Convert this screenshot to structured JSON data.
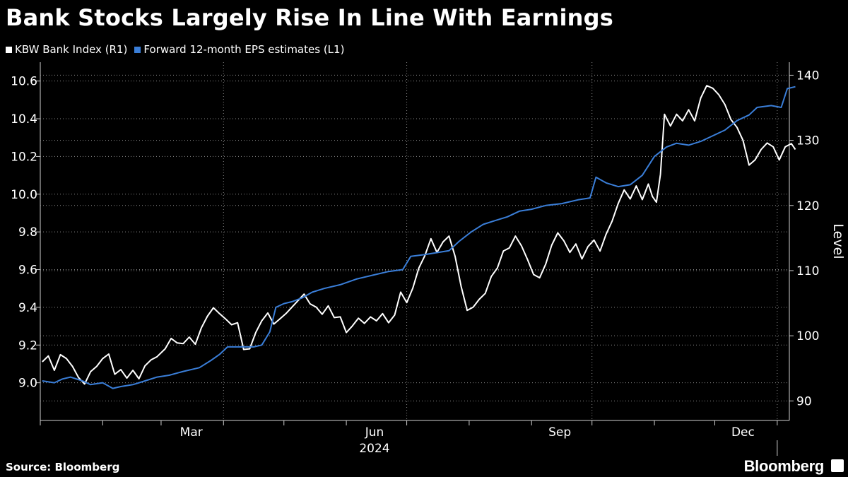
{
  "title": "Bank Stocks Largely Rise In Line With Earnings",
  "source": "Source: Bloomberg",
  "brand": "Bloomberg",
  "colors": {
    "background": "#000000",
    "index_line": "#ffffff",
    "eps_line": "#3a7ed8",
    "grid": "#8a8a8a"
  },
  "legend": [
    {
      "label": "KBW Bank Index (R1)",
      "color": "#ffffff"
    },
    {
      "label": "Forward 12-month EPS estimates (L1)",
      "color": "#3a7ed8"
    }
  ],
  "chart_data": {
    "type": "line",
    "x_axis": {
      "ticks": [
        "Mar",
        "Jun",
        "Sep",
        "Dec"
      ],
      "year_label": "2024",
      "start": "2024-01-01",
      "end": "2024-12-31"
    },
    "left_axis": {
      "ticks": [
        "9.0",
        "9.2",
        "9.4",
        "9.6",
        "9.8",
        "10.0",
        "10.2",
        "10.4",
        "10.6"
      ],
      "ylim": [
        8.8,
        10.7
      ]
    },
    "right_axis": {
      "label": "Level",
      "ticks": [
        "90",
        "100",
        "110",
        "120",
        "130",
        "140"
      ],
      "ylim": [
        87,
        142
      ]
    },
    "grid": true,
    "series": [
      {
        "name": "Forward 12-month EPS estimates (L1)",
        "axis": "left",
        "points": [
          [
            "2024-01-02",
            9.01
          ],
          [
            "2024-01-08",
            9.0
          ],
          [
            "2024-01-12",
            9.02
          ],
          [
            "2024-01-16",
            9.03
          ],
          [
            "2024-01-22",
            9.01
          ],
          [
            "2024-01-26",
            8.99
          ],
          [
            "2024-02-01",
            9.0
          ],
          [
            "2024-02-06",
            8.97
          ],
          [
            "2024-02-10",
            8.98
          ],
          [
            "2024-02-16",
            8.99
          ],
          [
            "2024-02-22",
            9.01
          ],
          [
            "2024-02-28",
            9.03
          ],
          [
            "2024-03-05",
            9.04
          ],
          [
            "2024-03-12",
            9.06
          ],
          [
            "2024-03-20",
            9.08
          ],
          [
            "2024-03-26",
            9.12
          ],
          [
            "2024-03-30",
            9.15
          ],
          [
            "2024-04-03",
            9.19
          ],
          [
            "2024-04-10",
            9.19
          ],
          [
            "2024-04-16",
            9.19
          ],
          [
            "2024-04-20",
            9.2
          ],
          [
            "2024-04-24",
            9.27
          ],
          [
            "2024-04-27",
            9.4
          ],
          [
            "2024-05-01",
            9.42
          ],
          [
            "2024-05-05",
            9.43
          ],
          [
            "2024-05-10",
            9.45
          ],
          [
            "2024-05-15",
            9.48
          ],
          [
            "2024-05-21",
            9.5
          ],
          [
            "2024-05-29",
            9.52
          ],
          [
            "2024-06-06",
            9.55
          ],
          [
            "2024-06-14",
            9.57
          ],
          [
            "2024-06-22",
            9.59
          ],
          [
            "2024-06-29",
            9.6
          ],
          [
            "2024-07-03",
            9.67
          ],
          [
            "2024-07-10",
            9.68
          ],
          [
            "2024-07-16",
            9.69
          ],
          [
            "2024-07-22",
            9.7
          ],
          [
            "2024-07-27",
            9.75
          ],
          [
            "2024-08-02",
            9.8
          ],
          [
            "2024-08-08",
            9.84
          ],
          [
            "2024-08-14",
            9.86
          ],
          [
            "2024-08-20",
            9.88
          ],
          [
            "2024-08-26",
            9.91
          ],
          [
            "2024-09-01",
            9.92
          ],
          [
            "2024-09-08",
            9.94
          ],
          [
            "2024-09-16",
            9.95
          ],
          [
            "2024-09-24",
            9.97
          ],
          [
            "2024-09-30",
            9.98
          ],
          [
            "2024-10-03",
            10.09
          ],
          [
            "2024-10-08",
            10.06
          ],
          [
            "2024-10-14",
            10.04
          ],
          [
            "2024-10-20",
            10.05
          ],
          [
            "2024-10-26",
            10.1
          ],
          [
            "2024-11-01",
            10.2
          ],
          [
            "2024-11-07",
            10.25
          ],
          [
            "2024-11-12",
            10.27
          ],
          [
            "2024-11-18",
            10.26
          ],
          [
            "2024-11-24",
            10.28
          ],
          [
            "2024-11-30",
            10.31
          ],
          [
            "2024-12-06",
            10.34
          ],
          [
            "2024-12-12",
            10.39
          ],
          [
            "2024-12-18",
            10.42
          ],
          [
            "2024-12-22",
            10.46
          ],
          [
            "2024-12-29",
            10.47
          ],
          [
            "2025-01-03",
            10.46
          ],
          [
            "2025-01-06",
            10.56
          ],
          [
            "2025-01-10",
            10.57
          ]
        ]
      },
      {
        "name": "KBW Bank Index (R1)",
        "axis": "right",
        "points": [
          [
            "2024-01-02",
            96.0
          ],
          [
            "2024-01-05",
            96.9
          ],
          [
            "2024-01-08",
            94.7
          ],
          [
            "2024-01-11",
            97.1
          ],
          [
            "2024-01-14",
            96.5
          ],
          [
            "2024-01-17",
            95.3
          ],
          [
            "2024-01-20",
            93.6
          ],
          [
            "2024-01-23",
            92.6
          ],
          [
            "2024-01-26",
            94.5
          ],
          [
            "2024-01-29",
            95.3
          ],
          [
            "2024-02-01",
            96.5
          ],
          [
            "2024-02-04",
            97.2
          ],
          [
            "2024-02-07",
            94.1
          ],
          [
            "2024-02-10",
            94.8
          ],
          [
            "2024-02-13",
            93.5
          ],
          [
            "2024-02-16",
            94.7
          ],
          [
            "2024-02-19",
            93.4
          ],
          [
            "2024-02-22",
            95.4
          ],
          [
            "2024-02-25",
            96.3
          ],
          [
            "2024-02-28",
            96.8
          ],
          [
            "2024-03-03",
            98.0
          ],
          [
            "2024-03-06",
            99.6
          ],
          [
            "2024-03-09",
            98.9
          ],
          [
            "2024-03-12",
            98.8
          ],
          [
            "2024-03-15",
            99.8
          ],
          [
            "2024-03-18",
            98.7
          ],
          [
            "2024-03-21",
            101.2
          ],
          [
            "2024-03-24",
            103.0
          ],
          [
            "2024-03-27",
            104.3
          ],
          [
            "2024-03-30",
            103.4
          ],
          [
            "2024-04-02",
            102.6
          ],
          [
            "2024-04-05",
            101.7
          ],
          [
            "2024-04-08",
            102.0
          ],
          [
            "2024-04-11",
            97.9
          ],
          [
            "2024-04-14",
            98.0
          ],
          [
            "2024-04-17",
            100.5
          ],
          [
            "2024-04-20",
            102.3
          ],
          [
            "2024-04-23",
            103.5
          ],
          [
            "2024-04-26",
            101.8
          ],
          [
            "2024-04-29",
            102.6
          ],
          [
            "2024-05-02",
            103.4
          ],
          [
            "2024-05-05",
            104.4
          ],
          [
            "2024-05-08",
            105.4
          ],
          [
            "2024-05-11",
            106.4
          ],
          [
            "2024-05-14",
            104.9
          ],
          [
            "2024-05-17",
            104.4
          ],
          [
            "2024-05-20",
            103.3
          ],
          [
            "2024-05-23",
            104.6
          ],
          [
            "2024-05-26",
            102.8
          ],
          [
            "2024-05-29",
            102.9
          ],
          [
            "2024-06-01",
            100.5
          ],
          [
            "2024-06-04",
            101.5
          ],
          [
            "2024-06-07",
            102.7
          ],
          [
            "2024-06-10",
            101.9
          ],
          [
            "2024-06-13",
            102.9
          ],
          [
            "2024-06-16",
            102.3
          ],
          [
            "2024-06-19",
            103.4
          ],
          [
            "2024-06-22",
            102.0
          ],
          [
            "2024-06-25",
            103.2
          ],
          [
            "2024-06-28",
            106.7
          ],
          [
            "2024-07-01",
            105.1
          ],
          [
            "2024-07-04",
            107.3
          ],
          [
            "2024-07-07",
            110.4
          ],
          [
            "2024-07-10",
            112.3
          ],
          [
            "2024-07-13",
            114.9
          ],
          [
            "2024-07-16",
            112.8
          ],
          [
            "2024-07-19",
            114.4
          ],
          [
            "2024-07-22",
            115.3
          ],
          [
            "2024-07-25",
            112.2
          ],
          [
            "2024-07-28",
            107.6
          ],
          [
            "2024-07-31",
            103.9
          ],
          [
            "2024-08-03",
            104.4
          ],
          [
            "2024-08-06",
            105.6
          ],
          [
            "2024-08-09",
            106.5
          ],
          [
            "2024-08-12",
            109.1
          ],
          [
            "2024-08-15",
            110.4
          ],
          [
            "2024-08-18",
            113.0
          ],
          [
            "2024-08-21",
            113.5
          ],
          [
            "2024-08-24",
            115.3
          ],
          [
            "2024-08-27",
            113.8
          ],
          [
            "2024-08-30",
            111.7
          ],
          [
            "2024-09-02",
            109.4
          ],
          [
            "2024-09-05",
            108.9
          ],
          [
            "2024-09-08",
            111.0
          ],
          [
            "2024-09-11",
            113.9
          ],
          [
            "2024-09-14",
            115.8
          ],
          [
            "2024-09-17",
            114.6
          ],
          [
            "2024-09-20",
            112.8
          ],
          [
            "2024-09-23",
            114.1
          ],
          [
            "2024-09-26",
            111.8
          ],
          [
            "2024-09-29",
            113.7
          ],
          [
            "2024-10-02",
            114.7
          ],
          [
            "2024-10-05",
            113.0
          ],
          [
            "2024-10-08",
            115.6
          ],
          [
            "2024-10-11",
            117.6
          ],
          [
            "2024-10-14",
            120.3
          ],
          [
            "2024-10-17",
            122.4
          ],
          [
            "2024-10-20",
            121.0
          ],
          [
            "2024-10-23",
            123.0
          ],
          [
            "2024-10-26",
            120.9
          ],
          [
            "2024-10-29",
            123.3
          ],
          [
            "2024-10-31",
            121.4
          ],
          [
            "2024-11-02",
            120.5
          ],
          [
            "2024-11-04",
            124.8
          ],
          [
            "2024-11-06",
            134.0
          ],
          [
            "2024-11-09",
            132.2
          ],
          [
            "2024-11-12",
            134.0
          ],
          [
            "2024-11-15",
            133.0
          ],
          [
            "2024-11-18",
            134.7
          ],
          [
            "2024-11-21",
            133.0
          ],
          [
            "2024-11-24",
            136.5
          ],
          [
            "2024-11-27",
            138.4
          ],
          [
            "2024-11-30",
            138.0
          ],
          [
            "2024-12-03",
            137.0
          ],
          [
            "2024-12-06",
            135.5
          ],
          [
            "2024-12-09",
            133.2
          ],
          [
            "2024-12-12",
            132.0
          ],
          [
            "2024-12-15",
            130.0
          ],
          [
            "2024-12-18",
            126.2
          ],
          [
            "2024-12-21",
            127.0
          ],
          [
            "2024-12-24",
            128.6
          ],
          [
            "2024-12-27",
            129.6
          ],
          [
            "2024-12-30",
            129.0
          ],
          [
            "2025-01-02",
            127.0
          ],
          [
            "2025-01-05",
            129.0
          ],
          [
            "2025-01-08",
            129.5
          ],
          [
            "2025-01-10",
            128.6
          ]
        ]
      }
    ]
  }
}
